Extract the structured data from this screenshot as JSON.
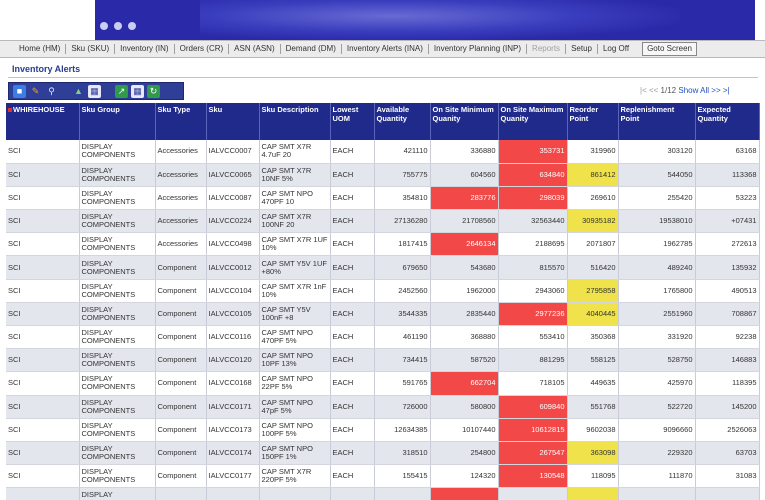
{
  "nav": {
    "items": [
      {
        "label": "Home (HM)",
        "disabled": false
      },
      {
        "label": "Sku (SKU)",
        "disabled": false
      },
      {
        "label": "Inventory (IN)",
        "disabled": false
      },
      {
        "label": "Orders (CR)",
        "disabled": false
      },
      {
        "label": "ASN (ASN)",
        "disabled": false
      },
      {
        "label": "Demand (DM)",
        "disabled": false
      },
      {
        "label": "Inventory Alerts (INA)",
        "disabled": false
      },
      {
        "label": "Inventory Planning (INP)",
        "disabled": false
      },
      {
        "label": "Reports",
        "disabled": true
      },
      {
        "label": "Setup",
        "disabled": false
      },
      {
        "label": "Log Off",
        "disabled": false
      }
    ],
    "goto_label": "Goto Screen"
  },
  "page_title": "Inventory Alerts",
  "toolbar": {
    "icons": [
      "folder-icon",
      "pencil-icon",
      "magnifier-icon",
      "flask-icon",
      "table-icon",
      "export-icon",
      "grid-icon",
      "refresh-icon"
    ]
  },
  "pager": {
    "prev": "|< << ",
    "status": "1/12",
    "show_all": "Show All",
    "next": ">> >|"
  },
  "table": {
    "headers": [
      "WHIREHOUSE",
      "Sku Group",
      "Sku Type",
      "Sku",
      "Sku Description",
      "Lowest UOM",
      "Available Quantity",
      "On Site Minimum Quanity",
      "On Site Maximum Quanity",
      "Reorder Point",
      "Replenishment Point",
      "Expected Quantity"
    ],
    "rows": [
      {
        "wh": "SCI",
        "group": "DISPLAY COMPONENTS",
        "type": "Accessories",
        "sku": "IALVCC0007",
        "desc": "CAP SMT X7R 4.7uF 20",
        "uom": "EACH",
        "avail": "421110",
        "min": "336880",
        "max": "353731",
        "reorder": "319960",
        "replen": "303120",
        "expected": "63168",
        "flags": {
          "max": "red"
        }
      },
      {
        "wh": "SCI",
        "group": "DISPLAY COMPONENTS",
        "type": "Accessories",
        "sku": "IALVCC0065",
        "desc": "CAP SMT X7R 10NF 5%",
        "uom": "EACH",
        "avail": "755775",
        "min": "604560",
        "max": "634840",
        "reorder": "861412",
        "replen": "544050",
        "expected": "113368",
        "flags": {
          "max": "red",
          "reorder": "yellow"
        }
      },
      {
        "wh": "SCI",
        "group": "DISPLAY COMPONENTS",
        "type": "Accessories",
        "sku": "IALVCC0087",
        "desc": "CAP SMT NPO 470PF 10",
        "uom": "EACH",
        "avail": "354810",
        "min": "283776",
        "max": "298039",
        "reorder": "269610",
        "replen": "255420",
        "expected": "53223",
        "flags": {
          "min": "red",
          "max": "red"
        }
      },
      {
        "wh": "SCI",
        "group": "DISPLAY COMPONENTS",
        "type": "Accessories",
        "sku": "IALVCC0224",
        "desc": "CAP SMT X7R 100NF 20",
        "uom": "EACH",
        "avail": "27136280",
        "min": "21708560",
        "max": "32563440",
        "reorder": "30935182",
        "replen": "19538010",
        "expected": "+07431",
        "flags": {
          "reorder": "yellow"
        }
      },
      {
        "wh": "SCI",
        "group": "DISPLAY COMPONENTS",
        "type": "Accessories",
        "sku": "IALVCC0498",
        "desc": "CAP SMT X7R 1UF 10%",
        "uom": "EACH",
        "avail": "1817415",
        "min": "2646134",
        "max": "2188695",
        "reorder": "2071807",
        "replen": "1962785",
        "expected": "272613",
        "flags": {
          "min": "red"
        }
      },
      {
        "wh": "SCI",
        "group": "DISPLAY COMPONENTS",
        "type": "Component",
        "sku": "IALVCC0012",
        "desc": "CAP SMT Y5V 1UF +80%",
        "uom": "EACH",
        "avail": "679650",
        "min": "543680",
        "max": "815570",
        "reorder": "516420",
        "replen": "489240",
        "expected": "135932",
        "flags": {}
      },
      {
        "wh": "SCI",
        "group": "DISPLAY COMPONENTS",
        "type": "Component",
        "sku": "IALVCC0104",
        "desc": "CAP SMT X7R 1nF 10%",
        "uom": "EACH",
        "avail": "2452560",
        "min": "1962000",
        "max": "2943060",
        "reorder": "2795858",
        "replen": "1765800",
        "expected": "490513",
        "flags": {
          "reorder": "yellow"
        }
      },
      {
        "wh": "SCI",
        "group": "DISPLAY COMPONENTS",
        "type": "Component",
        "sku": "IALVCC0105",
        "desc": "CAP SMT Y5V 100nF +8",
        "uom": "EACH",
        "avail": "3544335",
        "min": "2835440",
        "max": "2977236",
        "reorder": "4040445",
        "replen": "2551960",
        "expected": "708867",
        "flags": {
          "max": "red",
          "reorder": "yellow"
        }
      },
      {
        "wh": "SCI",
        "group": "DISPLAY COMPONENTS",
        "type": "Component",
        "sku": "IALVCC0116",
        "desc": "CAP SMT NPO 470PF 5%",
        "uom": "EACH",
        "avail": "461190",
        "min": "368880",
        "max": "553410",
        "reorder": "350368",
        "replen": "331920",
        "expected": "92238",
        "flags": {}
      },
      {
        "wh": "SCI",
        "group": "DISPLAY COMPONENTS",
        "type": "Component",
        "sku": "IALVCC0120",
        "desc": "CAP SMT NPO 10PF 13%",
        "uom": "EACH",
        "avail": "734415",
        "min": "587520",
        "max": "881295",
        "reorder": "558125",
        "replen": "528750",
        "expected": "146883",
        "flags": {}
      },
      {
        "wh": "SCI",
        "group": "DISPLAY COMPONENTS",
        "type": "Component",
        "sku": "IALVCC0168",
        "desc": "CAP SMT NPO 22PF 5%",
        "uom": "EACH",
        "avail": "591765",
        "min": "662704",
        "max": "718105",
        "reorder": "449635",
        "replen": "425970",
        "expected": "118395",
        "flags": {
          "min": "red"
        }
      },
      {
        "wh": "SCI",
        "group": "DISPLAY COMPONENTS",
        "type": "Component",
        "sku": "IALVCC0171",
        "desc": "CAP SMT NPO 47pF 5%",
        "uom": "EACH",
        "avail": "726000",
        "min": "580800",
        "max": "609840",
        "reorder": "551768",
        "replen": "522720",
        "expected": "145200",
        "flags": {
          "max": "red"
        }
      },
      {
        "wh": "SCI",
        "group": "DISPLAY COMPONENTS",
        "type": "Component",
        "sku": "IALVCC0173",
        "desc": "CAP SMT NPO 100PF 5%",
        "uom": "EACH",
        "avail": "12634385",
        "min": "10107440",
        "max": "10612815",
        "reorder": "9602038",
        "replen": "9096660",
        "expected": "2526063",
        "flags": {
          "max": "red"
        }
      },
      {
        "wh": "SCI",
        "group": "DISPLAY COMPONENTS",
        "type": "Component",
        "sku": "IALVCC0174",
        "desc": "CAP SMT NPO 150PF 1%",
        "uom": "EACH",
        "avail": "318510",
        "min": "254800",
        "max": "267547",
        "reorder": "363098",
        "replen": "229320",
        "expected": "63703",
        "flags": {
          "max": "red",
          "reorder": "yellow"
        }
      },
      {
        "wh": "SCI",
        "group": "DISPLAY COMPONENTS",
        "type": "Component",
        "sku": "IALVCC0177",
        "desc": "CAP SMT X7R 220PF 5%",
        "uom": "EACH",
        "avail": "155415",
        "min": "124320",
        "max": "130548",
        "reorder": "118095",
        "replen": "111870",
        "expected": "31083",
        "flags": {
          "max": "red"
        }
      },
      {
        "wh": "",
        "group": "DISPLAY COMPONENTS",
        "type": "",
        "sku": "",
        "desc": "",
        "uom": "",
        "avail": "",
        "min": "",
        "max": "",
        "reorder": "",
        "replen": "",
        "expected": "",
        "flags": {
          "min": "red",
          "reorder": "yellow"
        }
      }
    ]
  },
  "colors": {
    "banner": "#2a2aa8",
    "header": "#1f2a8a",
    "alert_red": "#f24848",
    "alert_yellow": "#f0e24a",
    "title": "#2a3d8f"
  }
}
